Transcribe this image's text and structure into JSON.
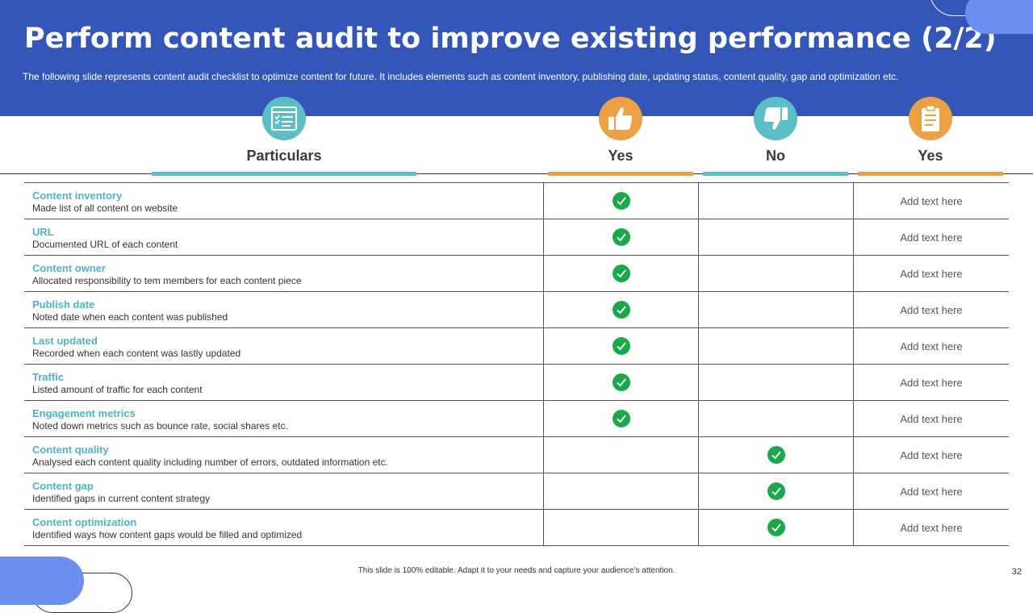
{
  "slide": {
    "title": "Perform content audit to improve existing performance (2/2)",
    "subtitle": "The following slide represents content audit checklist to optimize content for future. It includes elements such as content inventory, publishing date, updating status, content quality, gap and optimization etc.",
    "footer": "This slide is 100% editable. Adapt it to your needs and capture your audience’s attention.",
    "page_number": "32"
  },
  "columns": {
    "particulars": {
      "label": "Particulars",
      "icon": "checklist-icon"
    },
    "yes": {
      "label": "Yes",
      "icon": "thumbs-up-icon"
    },
    "no": {
      "label": "No",
      "icon": "thumbs-down-icon"
    },
    "yes2": {
      "label": "Yes",
      "icon": "clipboard-icon"
    }
  },
  "colors": {
    "header_bg": "#3356b8",
    "teal": "#5bbdc5",
    "orange": "#eba043",
    "check": "#1aa84a"
  },
  "rows": [
    {
      "title": "Content inventory",
      "desc": "Made list of all content on website",
      "status": "yes",
      "note": "Add text here"
    },
    {
      "title": "URL",
      "desc": "Documented URL of each content",
      "status": "yes",
      "note": "Add text here"
    },
    {
      "title": "Content owner",
      "desc": "Allocated responsibility to tem members for each content piece",
      "status": "yes",
      "note": "Add text here"
    },
    {
      "title": "Publish date",
      "desc": "Noted date when each content was published",
      "status": "yes",
      "note": "Add text here"
    },
    {
      "title": "Last updated",
      "desc": "Recorded when each content was lastly updated",
      "status": "yes",
      "note": "Add text here"
    },
    {
      "title": "Traffic",
      "desc": "Listed amount of traffic for each content",
      "status": "yes",
      "note": "Add text here"
    },
    {
      "title": "Engagement metrics",
      "desc": "Noted down metrics such as bounce rate, social shares etc.",
      "status": "yes",
      "note": "Add text here"
    },
    {
      "title": "Content quality",
      "desc": "Analysed each  content quality including number of errors,  outdated information etc.",
      "status": "no",
      "note": "Add text here"
    },
    {
      "title": "Content gap",
      "desc": "Identified gaps in current content strategy",
      "status": "no",
      "note": "Add text here"
    },
    {
      "title": "Content optimization",
      "desc": "Identified ways how content gaps would be filled and optimized",
      "status": "no",
      "note": "Add text here"
    }
  ]
}
